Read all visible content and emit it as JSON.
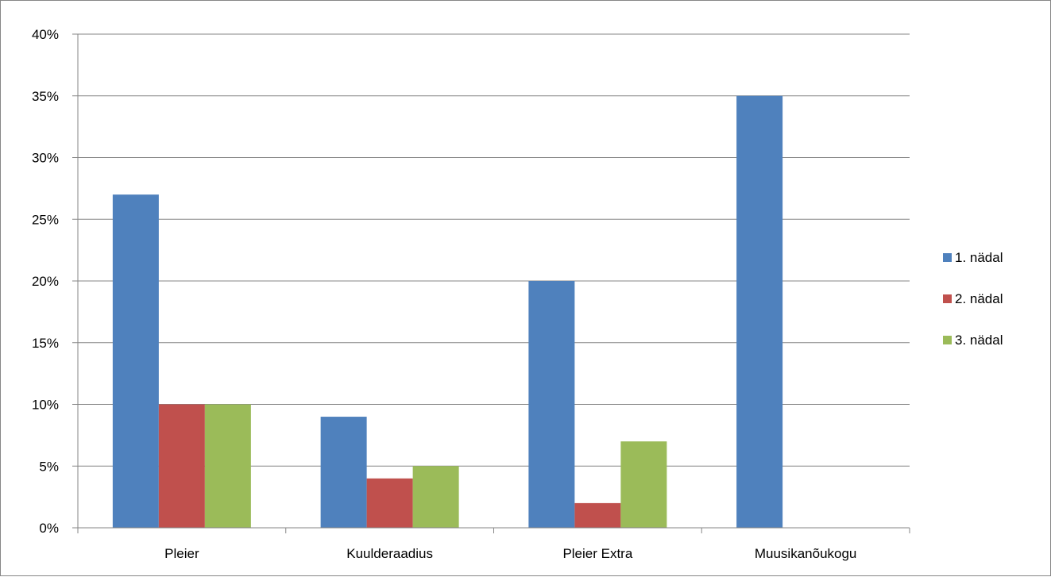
{
  "chart_data": {
    "type": "bar",
    "title": "",
    "xlabel": "",
    "ylabel": "",
    "categories": [
      "Pleier",
      "Kuulderaadius",
      "Pleier Extra",
      "Muusikanõukogu"
    ],
    "series": [
      {
        "name": "1. nädal",
        "color": "#4F81BD",
        "values": [
          27,
          9,
          20,
          35
        ]
      },
      {
        "name": "2. nädal",
        "color": "#C0504D",
        "values": [
          10,
          4,
          2,
          0
        ]
      },
      {
        "name": "3. nädal",
        "color": "#9BBB59",
        "values": [
          10,
          5,
          7,
          0
        ]
      }
    ],
    "ylim": [
      0,
      40
    ],
    "y_ticks": [
      "0%",
      "5%",
      "10%",
      "15%",
      "20%",
      "25%",
      "30%",
      "35%",
      "40%"
    ],
    "y_tick_values": [
      0,
      5,
      10,
      15,
      20,
      25,
      30,
      35,
      40
    ],
    "grid": true,
    "legend_position": "right"
  }
}
